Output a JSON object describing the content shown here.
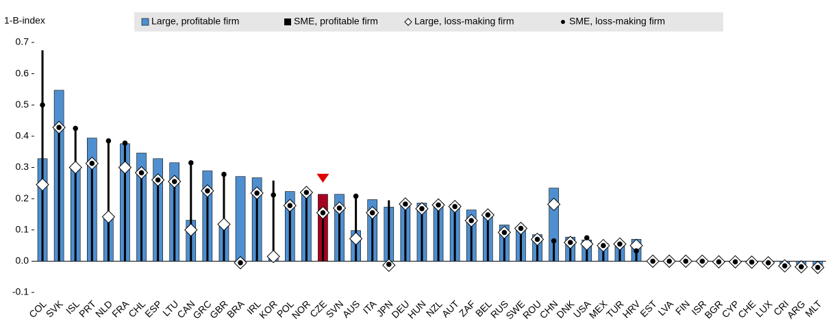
{
  "chart_data": {
    "type": "bar",
    "y_axis_label": "1-B-index",
    "categories": [
      "COL",
      "SVK",
      "ISL",
      "PRT",
      "NLD",
      "FRA",
      "CHL",
      "ESP",
      "LTU",
      "CAN",
      "GRC",
      "GBR",
      "BRA",
      "IRL",
      "KOR",
      "POL",
      "NOR",
      "CZE",
      "SVN",
      "AUS",
      "ITA",
      "JPN",
      "DEU",
      "HUN",
      "NZL",
      "AUT",
      "ZAF",
      "BEL",
      "RUS",
      "SWE",
      "ROU",
      "CHN",
      "DNK",
      "USA",
      "MEX",
      "TUR",
      "HRV",
      "EST",
      "LVA",
      "FIN",
      "ISR",
      "BGR",
      "CYP",
      "CHE",
      "LUX",
      "CRI",
      "ARG",
      "MLT"
    ],
    "highlight": "CZE",
    "highlight_color": "#a50021",
    "series": [
      {
        "name": "Large, profitable firm",
        "color": "#4f8fd0",
        "mark": "bar",
        "values": [
          0.328,
          0.547,
          0.3,
          0.394,
          0.14,
          0.376,
          0.346,
          0.328,
          0.315,
          0.131,
          0.289,
          0.12,
          0.271,
          0.267,
          0.015,
          0.223,
          0.217,
          0.214,
          0.214,
          0.098,
          0.197,
          0.173,
          0.186,
          0.186,
          0.186,
          0.182,
          0.164,
          0.151,
          0.116,
          0.109,
          0.085,
          0.234,
          0.077,
          0.068,
          0.057,
          0.057,
          0.07,
          0.002,
          0.002,
          0.002,
          0.002,
          0.0,
          0.0,
          -0.003,
          -0.005,
          -0.013,
          -0.015,
          -0.015
        ]
      },
      {
        "name": "SME, profitable firm",
        "color": "#000000",
        "mark": "line",
        "values": [
          0.675,
          0.43,
          0.425,
          0.31,
          0.385,
          0.375,
          0.28,
          0.26,
          0.255,
          0.315,
          0.225,
          0.278,
          -0.005,
          0.218,
          0.258,
          0.178,
          0.22,
          0.155,
          0.17,
          0.208,
          0.155,
          0.195,
          0.183,
          0.168,
          0.18,
          0.175,
          0.13,
          0.148,
          0.092,
          0.105,
          0.07,
          0.065,
          0.06,
          0.075,
          0.05,
          0.055,
          0.033,
          0.0,
          0.0,
          0.0,
          0.0,
          -0.002,
          -0.002,
          -0.003,
          -0.005,
          -0.015,
          -0.018,
          -0.02
        ]
      },
      {
        "name": "Large, loss-making firm",
        "color": "#ffffff",
        "mark": "diamond",
        "values": [
          0.245,
          0.428,
          0.3,
          0.313,
          0.142,
          0.3,
          0.283,
          0.26,
          0.255,
          0.1,
          0.225,
          0.118,
          -0.005,
          0.218,
          0.015,
          0.178,
          0.22,
          0.155,
          0.17,
          0.072,
          0.155,
          -0.013,
          0.183,
          0.168,
          0.18,
          0.175,
          0.13,
          0.148,
          0.092,
          0.105,
          0.07,
          0.182,
          0.06,
          0.055,
          0.05,
          0.055,
          0.05,
          0.0,
          0.0,
          0.0,
          0.0,
          -0.002,
          -0.002,
          -0.003,
          -0.005,
          -0.015,
          -0.018,
          -0.02
        ]
      },
      {
        "name": "SME, loss-making firm",
        "color": "#000000",
        "mark": "dot",
        "values": [
          0.5,
          0.428,
          0.425,
          0.313,
          0.385,
          0.378,
          0.283,
          0.26,
          0.255,
          0.315,
          0.225,
          0.278,
          -0.005,
          0.218,
          0.212,
          0.178,
          0.22,
          0.155,
          0.17,
          0.208,
          0.155,
          -0.01,
          0.183,
          0.168,
          0.18,
          0.175,
          0.13,
          0.148,
          0.092,
          0.105,
          0.07,
          0.065,
          0.06,
          0.075,
          0.05,
          0.055,
          0.033,
          0.0,
          0.0,
          0.0,
          0.0,
          -0.002,
          -0.002,
          -0.003,
          -0.005,
          -0.015,
          -0.018,
          -0.02
        ]
      }
    ],
    "ylim": [
      -0.1,
      0.7
    ],
    "yticks": [
      -0.1,
      {
        "value": 0,
        "label": "0.0"
      },
      0.1,
      0.2,
      0.3,
      0.4,
      0.5,
      0.6,
      0.7
    ],
    "grid": false
  }
}
